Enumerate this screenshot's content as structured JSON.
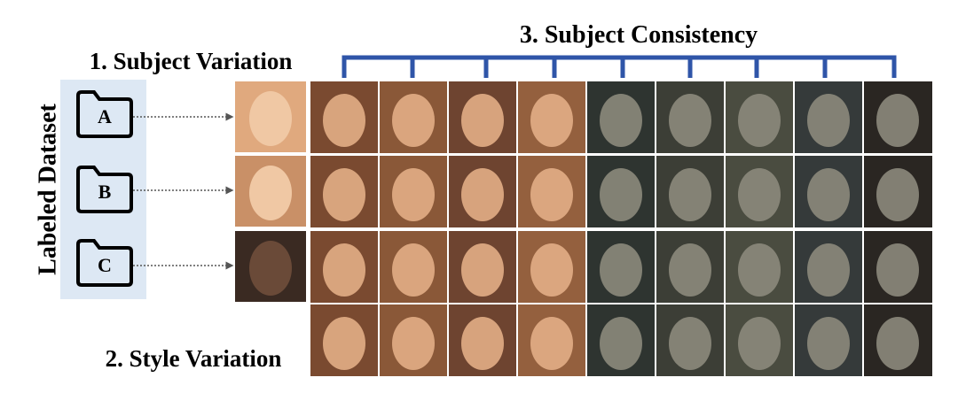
{
  "header": {
    "consistency": "3. Subject Consistency",
    "variation": "1. Subject Variation"
  },
  "dataset": {
    "label": "Labeled Dataset",
    "folders": [
      {
        "label": "A"
      },
      {
        "label": "B"
      },
      {
        "label": "C"
      }
    ]
  },
  "footer": {
    "style": "2. Style Variation"
  }
}
